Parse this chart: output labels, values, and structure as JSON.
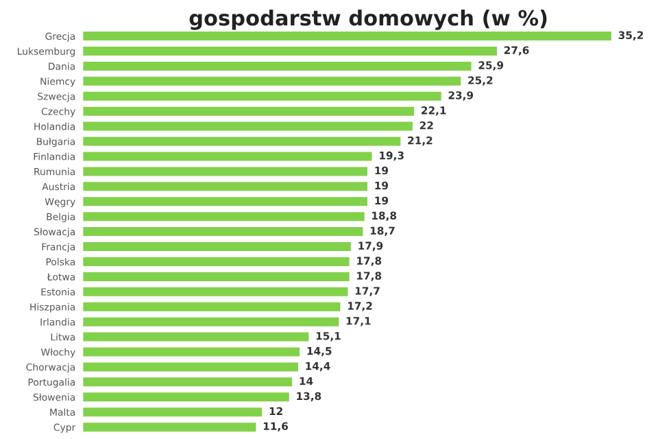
{
  "chart_data": {
    "type": "bar",
    "orientation": "horizontal",
    "title": "gospodarstw domowych (w %)",
    "categories": [
      "Grecja",
      "Luksemburg",
      "Dania",
      "Niemcy",
      "Szwecja",
      "Czechy",
      "Holandia",
      "Bułgaria",
      "Finlandia",
      "Rumunia",
      "Austria",
      "Węgry",
      "Belgia",
      "Słowacja",
      "Francja",
      "Polska",
      "Łotwa",
      "Estonia",
      "Hiszpania",
      "Irlandia",
      "Litwa",
      "Włochy",
      "Chorwacja",
      "Portugalia",
      "Słowenia",
      "Malta",
      "Cypr"
    ],
    "values": [
      35.2,
      27.6,
      25.9,
      25.2,
      23.9,
      22.1,
      22,
      21.2,
      19.3,
      19,
      19,
      19,
      18.8,
      18.7,
      17.9,
      17.8,
      17.8,
      17.7,
      17.2,
      17.1,
      15.1,
      14.5,
      14.4,
      14,
      13.8,
      12,
      11.6
    ],
    "value_labels": [
      "35,2",
      "27,6",
      "25,9",
      "25,2",
      "23,9",
      "22,1",
      "22",
      "21,2",
      "19,3",
      "19",
      "19",
      "19",
      "18,8",
      "18,7",
      "17,9",
      "17,8",
      "17,8",
      "17,7",
      "17,2",
      "17,1",
      "15,1",
      "14,5",
      "14,4",
      "14",
      "13,8",
      "12",
      "11,6"
    ],
    "color": "#82d14b",
    "tick_labels": "y",
    "grid": false,
    "legend": false
  }
}
